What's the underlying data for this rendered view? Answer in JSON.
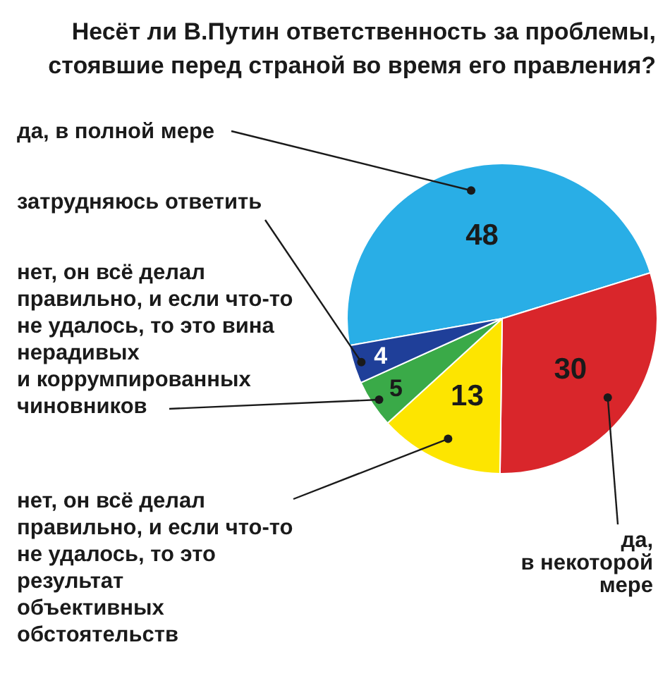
{
  "chart_data": {
    "type": "pie",
    "title": "Несёт ли В.Путин ответственность за проблемы,\nстоявшие перед страной во время его правления?",
    "categories": [
      "да, в полной мере",
      "да,\nв некоторой\nмере",
      "нет, он всё делал\nправильно, и если что-то\nне удалось, то это\nрезультат\nобъективных\nобстоятельств",
      "нет, он всё делал\nправильно, и если что-то\nне удалось, то это вина\nнерадивых\nи коррумпированных\nчиновников",
      "затрудняюсь ответить"
    ],
    "values": [
      48,
      30,
      13,
      5,
      4
    ],
    "colors": [
      "#29aee6",
      "#d9262b",
      "#fde500",
      "#3aaa48",
      "#1f3f99"
    ],
    "data_labels": true
  }
}
